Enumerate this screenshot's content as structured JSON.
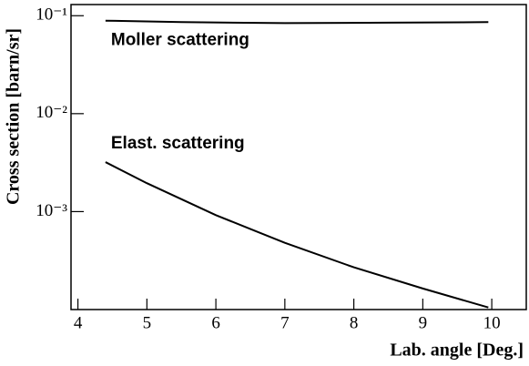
{
  "chart_data": {
    "type": "line",
    "x_label": "Lab. angle [Deg.]",
    "y_label": "Cross section [barn/sr]",
    "log_y": true,
    "xlim": [
      3.9,
      10.5
    ],
    "xticks": [
      4,
      5,
      6,
      7,
      8,
      9,
      10
    ],
    "ylim": [
      0.0001,
      0.13
    ],
    "yticks": [
      {
        "value": 0.001,
        "label": "10⁻³"
      },
      {
        "value": 0.01,
        "label": "10⁻²"
      },
      {
        "value": 0.1,
        "label": "10⁻¹"
      }
    ],
    "series": [
      {
        "name": "Moller scattering",
        "color": "#000000",
        "x": [
          4.4,
          5.5,
          7,
          8.5,
          9.95
        ],
        "values": [
          0.089,
          0.086,
          0.084,
          0.085,
          0.086
        ]
      },
      {
        "name": "Elast. scattering",
        "color": "#000000",
        "x": [
          4.4,
          5,
          6,
          7,
          8,
          9,
          9.95
        ],
        "values": [
          0.0032,
          0.00195,
          0.00092,
          0.00048,
          0.00027,
          0.000164,
          0.000105
        ]
      }
    ]
  }
}
